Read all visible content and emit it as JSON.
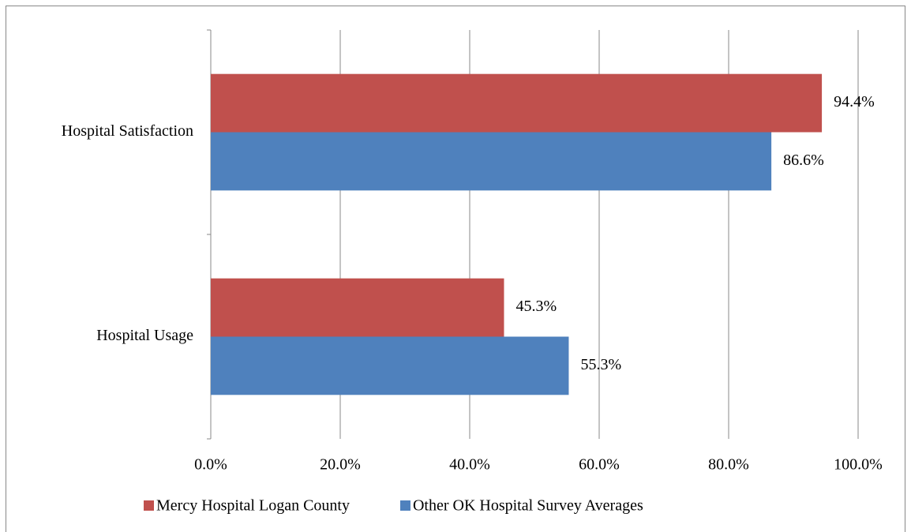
{
  "chart_data": {
    "type": "bar",
    "orientation": "horizontal",
    "categories": [
      "Hospital Satisfaction",
      "Hospital Usage"
    ],
    "series": [
      {
        "name": "Mercy Hospital Logan County",
        "color": "#c0504d",
        "values": [
          94.4,
          45.3
        ],
        "value_labels": [
          "94.4%",
          "45.3%"
        ]
      },
      {
        "name": "Other OK Hospital Survey Averages",
        "color": "#4f81bd",
        "values": [
          86.6,
          55.3
        ],
        "value_labels": [
          "86.6%",
          "55.3%"
        ]
      }
    ],
    "xlim": [
      0,
      100
    ],
    "xticks": [
      {
        "value": 0,
        "label": "0.0%"
      },
      {
        "value": 20,
        "label": "20.0%"
      },
      {
        "value": 40,
        "label": "40.0%"
      },
      {
        "value": 60,
        "label": "60.0%"
      },
      {
        "value": 80,
        "label": "80.0%"
      },
      {
        "value": 100,
        "label": "100.0%"
      }
    ],
    "grid": true,
    "legend": "bottom"
  }
}
